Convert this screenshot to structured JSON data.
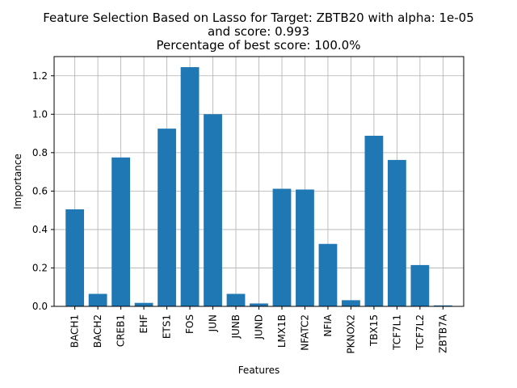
{
  "chart_data": {
    "type": "bar",
    "title_lines": [
      "Feature Selection Based on Lasso for Target: ZBTB20 with alpha: 1e-05",
      "and score: 0.993",
      "Percentage of best score: 100.0%"
    ],
    "xlabel": "Features",
    "ylabel": "Importance",
    "categories": [
      "BACH1",
      "BACH2",
      "CREB1",
      "EHF",
      "ETS1",
      "FOS",
      "JUN",
      "JUNB",
      "JUND",
      "LMX1B",
      "NFATC2",
      "NFIA",
      "PKNOX2",
      "TBX15",
      "TCF7L1",
      "TCF7L2",
      "ZBTB7A"
    ],
    "values": [
      0.505,
      0.065,
      0.775,
      0.018,
      0.925,
      1.245,
      1.0,
      0.065,
      0.015,
      0.612,
      0.608,
      0.325,
      0.032,
      0.888,
      0.762,
      0.215,
      0.005
    ],
    "yticks": [
      0.0,
      0.2,
      0.4,
      0.6,
      0.8,
      1.0,
      1.2
    ],
    "ytick_labels": [
      "0.0",
      "0.2",
      "0.4",
      "0.6",
      "0.8",
      "1.0",
      "1.2"
    ],
    "ylim": [
      0,
      1.3
    ],
    "grid": true,
    "colors": {
      "bar": "#1f77b4",
      "grid": "#b0b0b0",
      "axis": "#000000"
    }
  }
}
